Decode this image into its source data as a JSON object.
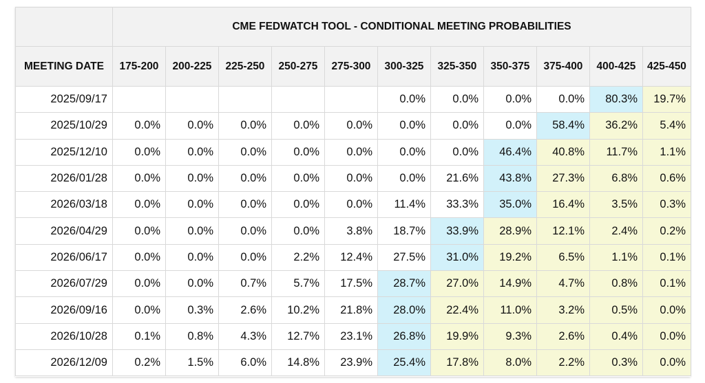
{
  "title": "CME FEDWATCH TOOL - CONDITIONAL MEETING PROBABILITIES",
  "header": {
    "date_label": "MEETING DATE",
    "ranges": [
      "175-200",
      "200-225",
      "225-250",
      "250-275",
      "275-300",
      "300-325",
      "325-350",
      "350-375",
      "375-400",
      "400-425",
      "425-450"
    ]
  },
  "colors": {
    "max_probability": "#d2f1fa",
    "above_max": "#f7f8d6",
    "border": "#d9d9d9",
    "header_bg": "#f2f2f2"
  },
  "rows": [
    {
      "date": "2025/09/17",
      "values": [
        "",
        "",
        "",
        "",
        "",
        "0.0%",
        "0.0%",
        "0.0%",
        "0.0%",
        "80.3%",
        "19.7%"
      ],
      "max_index": 9
    },
    {
      "date": "2025/10/29",
      "values": [
        "0.0%",
        "0.0%",
        "0.0%",
        "0.0%",
        "0.0%",
        "0.0%",
        "0.0%",
        "0.0%",
        "58.4%",
        "36.2%",
        "5.4%"
      ],
      "max_index": 8
    },
    {
      "date": "2025/12/10",
      "values": [
        "0.0%",
        "0.0%",
        "0.0%",
        "0.0%",
        "0.0%",
        "0.0%",
        "0.0%",
        "46.4%",
        "40.8%",
        "11.7%",
        "1.1%"
      ],
      "max_index": 7
    },
    {
      "date": "2026/01/28",
      "values": [
        "0.0%",
        "0.0%",
        "0.0%",
        "0.0%",
        "0.0%",
        "0.0%",
        "21.6%",
        "43.8%",
        "27.3%",
        "6.8%",
        "0.6%"
      ],
      "max_index": 7
    },
    {
      "date": "2026/03/18",
      "values": [
        "0.0%",
        "0.0%",
        "0.0%",
        "0.0%",
        "0.0%",
        "11.4%",
        "33.3%",
        "35.0%",
        "16.4%",
        "3.5%",
        "0.3%"
      ],
      "max_index": 7
    },
    {
      "date": "2026/04/29",
      "values": [
        "0.0%",
        "0.0%",
        "0.0%",
        "0.0%",
        "3.8%",
        "18.7%",
        "33.9%",
        "28.9%",
        "12.1%",
        "2.4%",
        "0.2%"
      ],
      "max_index": 6
    },
    {
      "date": "2026/06/17",
      "values": [
        "0.0%",
        "0.0%",
        "0.0%",
        "2.2%",
        "12.4%",
        "27.5%",
        "31.0%",
        "19.2%",
        "6.5%",
        "1.1%",
        "0.1%"
      ],
      "max_index": 6
    },
    {
      "date": "2026/07/29",
      "values": [
        "0.0%",
        "0.0%",
        "0.7%",
        "5.7%",
        "17.5%",
        "28.7%",
        "27.0%",
        "14.9%",
        "4.7%",
        "0.8%",
        "0.1%"
      ],
      "max_index": 5
    },
    {
      "date": "2026/09/16",
      "values": [
        "0.0%",
        "0.3%",
        "2.6%",
        "10.2%",
        "21.8%",
        "28.0%",
        "22.4%",
        "11.0%",
        "3.2%",
        "0.5%",
        "0.0%"
      ],
      "max_index": 5
    },
    {
      "date": "2026/10/28",
      "values": [
        "0.1%",
        "0.8%",
        "4.3%",
        "12.7%",
        "23.1%",
        "26.8%",
        "19.9%",
        "9.3%",
        "2.6%",
        "0.4%",
        "0.0%"
      ],
      "max_index": 5
    },
    {
      "date": "2026/12/09",
      "values": [
        "0.2%",
        "1.5%",
        "6.0%",
        "14.8%",
        "23.9%",
        "25.4%",
        "17.8%",
        "8.0%",
        "2.2%",
        "0.3%",
        "0.0%"
      ],
      "max_index": 5
    }
  ]
}
